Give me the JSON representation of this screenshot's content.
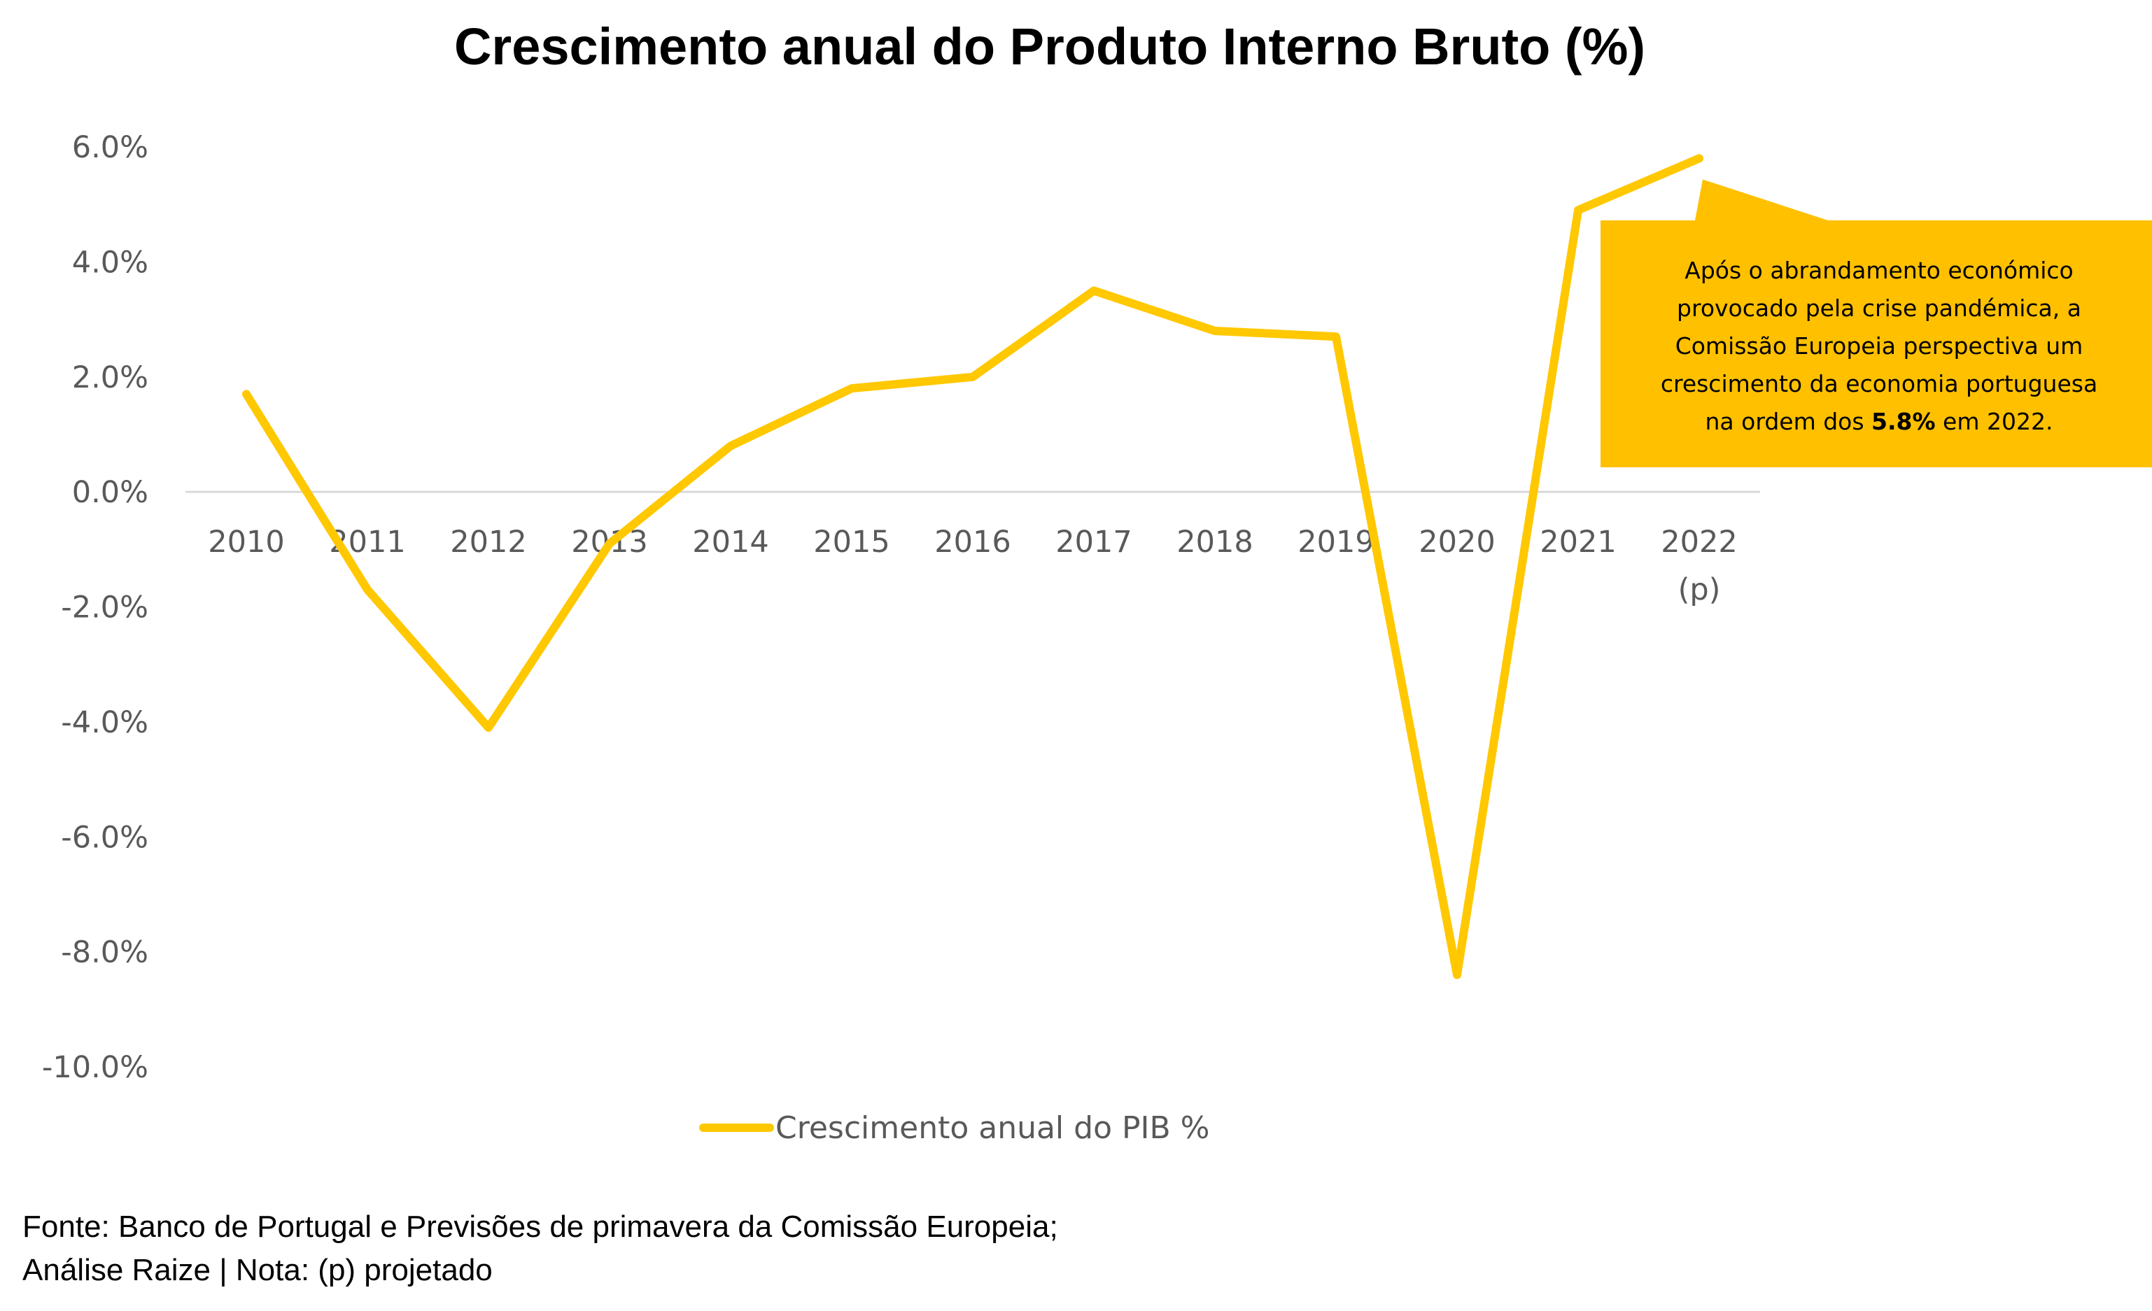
{
  "chart_data": {
    "type": "line",
    "title": "Crescimento anual do Produto Interno Bruto (%)",
    "xlabel": "",
    "ylabel": "",
    "categories": [
      "2010",
      "2011",
      "2012",
      "2013",
      "2014",
      "2015",
      "2016",
      "2017",
      "2018",
      "2019",
      "2020",
      "2021",
      "2022"
    ],
    "category_sublabels": [
      "",
      "",
      "",
      "",
      "",
      "",
      "",
      "",
      "",
      "",
      "",
      "",
      "(p)"
    ],
    "series": [
      {
        "name": "Crescimento anual do PIB %",
        "color": "#FFC800",
        "values": [
          1.7,
          -1.7,
          -4.1,
          -0.9,
          0.8,
          1.8,
          2.0,
          3.5,
          2.8,
          2.7,
          -8.4,
          4.9,
          5.8
        ]
      }
    ],
    "ylim": [
      -10.0,
      6.0
    ],
    "yticks": [
      {
        "value": 6.0,
        "label": "6.0%"
      },
      {
        "value": 4.0,
        "label": "4.0%"
      },
      {
        "value": 2.0,
        "label": "2.0%"
      },
      {
        "value": 0.0,
        "label": "0.0%"
      },
      {
        "value": -2.0,
        "label": "-2.0%"
      },
      {
        "value": -4.0,
        "label": "-4.0%"
      },
      {
        "value": -6.0,
        "label": "-6.0%"
      },
      {
        "value": -8.0,
        "label": "-8.0%"
      },
      {
        "value": -10.0,
        "label": "-10.0%"
      }
    ],
    "grid": false,
    "legend_position": "bottom",
    "annotation": {
      "lines": [
        "Após o abrandamento económico",
        "provocado pela crise pandémica, a",
        "Comissão Europeia perspectiva um",
        "crescimento da economia portuguesa"
      ],
      "last_line_before": "na ordem dos ",
      "last_line_bold": "5.8%",
      "last_line_after": " em 2022.",
      "background": "#FFC000"
    }
  },
  "source": {
    "line1": "Fonte: Banco de Portugal e Previsões de primavera da Comissão Europeia;",
    "line2": "Análise Raize | Nota: (p) projetado"
  }
}
